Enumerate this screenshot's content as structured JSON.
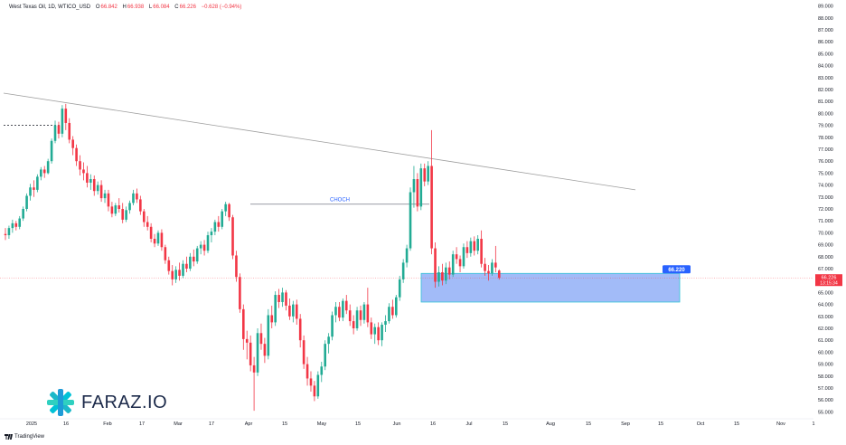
{
  "header": {
    "symbol": "West Texas Oil, 1D, WTICO_USD",
    "open_label": "O",
    "open": "66.842",
    "high_label": "H",
    "high": "66.938",
    "low_label": "L",
    "low": "66.084",
    "close_label": "C",
    "close": "66.226",
    "change": "−0.628 (−0.94%)"
  },
  "colors": {
    "up": "#22ab94",
    "down": "#f23645",
    "zone": "#7b9ef5",
    "trendline": "#9e9e9e",
    "choch": "#787b86",
    "label_bg": "#2962ff"
  },
  "chart_data": {
    "type": "candlestick",
    "y_range": [
      54.5,
      89.5
    ],
    "y_ticks": [
      "89.000",
      "88.000",
      "87.000",
      "86.000",
      "85.000",
      "84.000",
      "83.000",
      "82.000",
      "81.000",
      "80.000",
      "79.000",
      "78.000",
      "77.000",
      "76.000",
      "75.000",
      "74.000",
      "73.000",
      "72.000",
      "71.000",
      "70.000",
      "69.000",
      "68.000",
      "67.000",
      "66.000",
      "65.000",
      "64.000",
      "63.000",
      "62.000",
      "61.000",
      "60.000",
      "59.000",
      "58.000",
      "57.000",
      "56.000",
      "55.000"
    ],
    "x_ticks": [
      "2025",
      "16",
      "Feb",
      "17",
      "Mar",
      "17",
      "Apr",
      "15",
      "May",
      "15",
      "Jun",
      "16",
      "Jul",
      "15",
      "Aug",
      "15",
      "Sep",
      "15",
      "Oct",
      "15",
      "Nov",
      "1"
    ],
    "candles": [
      [
        69.9,
        70.4,
        69.4,
        69.8
      ],
      [
        69.8,
        70.6,
        69.5,
        70.4
      ],
      [
        70.4,
        71.1,
        70.0,
        70.8
      ],
      [
        70.8,
        71.0,
        70.2,
        70.5
      ],
      [
        70.5,
        71.4,
        70.3,
        71.2
      ],
      [
        71.2,
        72.2,
        71.0,
        72.0
      ],
      [
        72.0,
        73.3,
        71.8,
        73.1
      ],
      [
        73.1,
        74.1,
        72.7,
        73.8
      ],
      [
        73.8,
        74.4,
        73.0,
        73.6
      ],
      [
        73.6,
        74.9,
        73.4,
        74.7
      ],
      [
        74.7,
        75.5,
        74.4,
        75.3
      ],
      [
        75.3,
        75.6,
        74.6,
        75.0
      ],
      [
        75.0,
        76.2,
        74.9,
        76.0
      ],
      [
        76.0,
        77.9,
        75.8,
        77.7
      ],
      [
        77.7,
        79.4,
        77.5,
        79.0
      ],
      [
        79.0,
        79.3,
        77.9,
        78.3
      ],
      [
        78.3,
        80.7,
        78.0,
        80.4
      ],
      [
        80.4,
        80.8,
        78.6,
        79.2
      ],
      [
        79.2,
        79.6,
        77.5,
        77.8
      ],
      [
        77.8,
        78.1,
        76.5,
        77.1
      ],
      [
        77.1,
        77.4,
        75.6,
        76.0
      ],
      [
        76.0,
        76.5,
        74.8,
        75.3
      ],
      [
        75.3,
        75.9,
        74.4,
        75.0
      ],
      [
        75.0,
        75.6,
        73.8,
        74.2
      ],
      [
        74.2,
        74.9,
        73.6,
        74.5
      ],
      [
        74.5,
        74.8,
        73.1,
        73.5
      ],
      [
        73.5,
        74.3,
        73.2,
        74.0
      ],
      [
        74.0,
        74.4,
        72.6,
        72.9
      ],
      [
        72.9,
        73.6,
        72.5,
        73.3
      ],
      [
        73.3,
        73.6,
        71.8,
        72.2
      ],
      [
        72.2,
        72.6,
        71.3,
        71.6
      ],
      [
        71.6,
        72.5,
        71.4,
        72.3
      ],
      [
        72.3,
        72.9,
        71.7,
        72.0
      ],
      [
        72.0,
        72.5,
        70.8,
        71.1
      ],
      [
        71.1,
        72.2,
        70.9,
        71.9
      ],
      [
        71.9,
        72.7,
        71.6,
        72.5
      ],
      [
        72.5,
        73.6,
        72.3,
        73.3
      ],
      [
        73.3,
        73.7,
        72.5,
        72.8
      ],
      [
        72.8,
        73.1,
        71.5,
        71.8
      ],
      [
        71.8,
        72.0,
        70.5,
        70.9
      ],
      [
        70.9,
        71.4,
        70.2,
        70.5
      ],
      [
        70.5,
        70.8,
        69.2,
        69.5
      ],
      [
        69.5,
        69.9,
        68.8,
        69.1
      ],
      [
        69.1,
        70.2,
        68.9,
        70.0
      ],
      [
        70.0,
        70.3,
        68.5,
        68.8
      ],
      [
        68.8,
        69.0,
        67.4,
        67.7
      ],
      [
        67.7,
        68.0,
        66.5,
        66.8
      ],
      [
        66.8,
        67.3,
        65.6,
        66.1
      ],
      [
        66.1,
        67.2,
        65.8,
        66.9
      ],
      [
        66.9,
        67.5,
        66.0,
        66.4
      ],
      [
        66.4,
        67.7,
        66.2,
        67.4
      ],
      [
        67.4,
        68.0,
        66.7,
        67.0
      ],
      [
        67.0,
        68.3,
        66.8,
        68.0
      ],
      [
        68.0,
        68.6,
        67.2,
        67.6
      ],
      [
        67.6,
        68.9,
        67.4,
        68.7
      ],
      [
        68.7,
        69.3,
        68.2,
        69.0
      ],
      [
        69.0,
        69.4,
        68.1,
        68.5
      ],
      [
        68.5,
        70.1,
        68.3,
        69.8
      ],
      [
        69.8,
        70.4,
        69.2,
        70.1
      ],
      [
        70.1,
        71.1,
        69.8,
        70.9
      ],
      [
        70.9,
        71.4,
        70.1,
        70.5
      ],
      [
        70.5,
        72.0,
        70.3,
        71.8
      ],
      [
        71.8,
        72.6,
        71.4,
        72.4
      ],
      [
        72.4,
        72.5,
        71.0,
        71.3
      ],
      [
        71.3,
        71.5,
        67.8,
        68.1
      ],
      [
        68.1,
        68.5,
        65.9,
        66.3
      ],
      [
        66.3,
        66.6,
        63.3,
        63.6
      ],
      [
        63.6,
        64.0,
        60.2,
        61.1
      ],
      [
        61.1,
        61.8,
        59.4,
        60.8
      ],
      [
        60.8,
        61.4,
        58.4,
        58.9
      ],
      [
        58.9,
        59.6,
        55.1,
        58.3
      ],
      [
        58.3,
        62.0,
        58.0,
        61.6
      ],
      [
        61.6,
        62.4,
        60.2,
        60.7
      ],
      [
        60.7,
        61.2,
        59.1,
        59.7
      ],
      [
        59.7,
        63.6,
        59.4,
        63.1
      ],
      [
        63.1,
        63.9,
        62.0,
        62.5
      ],
      [
        62.5,
        65.1,
        62.2,
        64.8
      ],
      [
        64.8,
        65.3,
        63.7,
        64.2
      ],
      [
        64.2,
        65.4,
        63.8,
        65.0
      ],
      [
        65.0,
        65.2,
        63.5,
        63.9
      ],
      [
        63.9,
        64.5,
        62.7,
        63.0
      ],
      [
        63.0,
        64.3,
        62.5,
        64.0
      ],
      [
        64.0,
        64.4,
        62.3,
        62.8
      ],
      [
        62.8,
        63.2,
        60.4,
        61.0
      ],
      [
        61.0,
        61.4,
        58.6,
        59.0
      ],
      [
        59.0,
        59.6,
        57.2,
        57.8
      ],
      [
        57.8,
        58.4,
        56.7,
        57.2
      ],
      [
        57.2,
        57.6,
        55.9,
        56.3
      ],
      [
        56.3,
        58.4,
        56.1,
        58.1
      ],
      [
        58.1,
        59.2,
        57.5,
        58.8
      ],
      [
        58.8,
        61.0,
        58.5,
        60.7
      ],
      [
        60.7,
        61.6,
        59.9,
        61.3
      ],
      [
        61.3,
        63.4,
        61.0,
        63.1
      ],
      [
        63.1,
        64.2,
        62.5,
        63.8
      ],
      [
        63.8,
        64.2,
        62.6,
        62.9
      ],
      [
        62.9,
        64.5,
        62.6,
        64.3
      ],
      [
        64.3,
        64.8,
        63.2,
        63.5
      ],
      [
        63.5,
        64.0,
        62.2,
        62.6
      ],
      [
        62.6,
        63.1,
        61.5,
        62.0
      ],
      [
        62.0,
        63.8,
        61.8,
        63.5
      ],
      [
        63.5,
        63.9,
        62.2,
        62.7
      ],
      [
        62.7,
        64.2,
        62.4,
        64.0
      ],
      [
        64.0,
        65.4,
        62.1,
        62.5
      ],
      [
        62.5,
        62.9,
        61.1,
        61.5
      ],
      [
        61.5,
        62.4,
        60.7,
        62.1
      ],
      [
        62.1,
        62.5,
        60.6,
        61.0
      ],
      [
        61.0,
        62.5,
        60.5,
        62.3
      ],
      [
        62.3,
        63.1,
        61.7,
        62.6
      ],
      [
        62.6,
        64.1,
        62.4,
        63.8
      ],
      [
        63.8,
        64.4,
        62.8,
        63.1
      ],
      [
        63.1,
        64.8,
        62.9,
        64.6
      ],
      [
        64.6,
        66.4,
        64.3,
        66.1
      ],
      [
        66.1,
        67.8,
        65.8,
        67.5
      ],
      [
        67.5,
        69.0,
        67.1,
        68.7
      ],
      [
        68.7,
        73.8,
        68.5,
        73.4
      ],
      [
        73.4,
        75.6,
        72.1,
        74.5
      ],
      [
        74.5,
        75.0,
        71.8,
        72.2
      ],
      [
        72.2,
        75.8,
        71.9,
        75.4
      ],
      [
        75.4,
        75.8,
        73.9,
        74.3
      ],
      [
        74.3,
        76.0,
        74.0,
        75.6
      ],
      [
        75.6,
        78.6,
        68.2,
        68.7
      ],
      [
        68.7,
        69.2,
        65.4,
        65.9
      ],
      [
        65.9,
        67.2,
        65.5,
        66.7
      ],
      [
        66.7,
        67.4,
        65.6,
        66.0
      ],
      [
        66.0,
        67.5,
        65.7,
        67.1
      ],
      [
        67.1,
        67.6,
        66.1,
        66.5
      ],
      [
        66.5,
        68.5,
        66.3,
        68.2
      ],
      [
        68.2,
        68.8,
        67.4,
        67.8
      ],
      [
        67.8,
        68.1,
        66.7,
        67.2
      ],
      [
        67.2,
        69.1,
        67.0,
        68.8
      ],
      [
        68.8,
        69.3,
        67.9,
        68.3
      ],
      [
        68.3,
        69.6,
        68.0,
        69.3
      ],
      [
        69.3,
        69.7,
        68.1,
        68.5
      ],
      [
        68.5,
        69.8,
        68.2,
        69.5
      ],
      [
        69.5,
        70.2,
        67.1,
        67.4
      ],
      [
        67.4,
        67.9,
        66.4,
        66.8
      ],
      [
        66.8,
        67.3,
        66.0,
        66.6
      ],
      [
        66.6,
        67.8,
        66.4,
        67.5
      ],
      [
        67.5,
        68.9,
        66.7,
        67.1
      ],
      [
        66.84,
        66.94,
        66.08,
        66.23
      ]
    ],
    "annotations": {
      "trendline": {
        "from": [
          "2024-12-30",
          81.7
        ],
        "to": [
          "2025-09-10",
          73.6
        ]
      },
      "choch": {
        "label": "CHOCH",
        "level": 72.4
      },
      "prior_level": {
        "level": 79.0
      },
      "demand_zone": {
        "top": 66.6,
        "bottom": 64.2
      },
      "zone_label": "66.220",
      "last_price": "66.226",
      "countdown": "13:15:34"
    }
  },
  "brand": {
    "name": "FARAZ.IO"
  },
  "footer": {
    "tv": "TradingView"
  }
}
